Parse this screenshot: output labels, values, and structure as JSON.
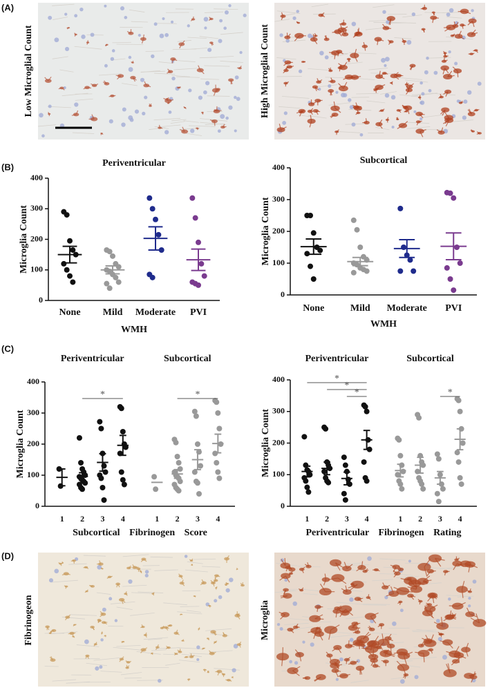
{
  "panel_a": {
    "label": "(A)",
    "images": [
      "Low Microglial Count",
      "High Microglial Count"
    ]
  },
  "panel_b": {
    "label": "(B)"
  },
  "panel_c": {
    "label": "(C)"
  },
  "panel_d": {
    "label": "(D)",
    "images": [
      "Fibrinogeon",
      "Microglia"
    ]
  },
  "chart_data": [
    {
      "type": "dotplot",
      "ylabel": "Microglia Count",
      "xlabel": "WMH",
      "ylim": [
        0,
        400
      ],
      "yticks": [
        0,
        100,
        200,
        300,
        400
      ],
      "groups": [
        {
          "title": "Periventricular",
          "categories": [
            "None",
            "Mild",
            "Moderate",
            "PVI"
          ],
          "colors": [
            "#111111",
            "#999999",
            "#1f2b8c",
            "#7a3b8f"
          ],
          "points": [
            [
              290,
              280,
              195,
              165,
              150,
              120,
              100,
              80,
              60
            ],
            [
              165,
              160,
              145,
              120,
              110,
              100,
              95,
              85,
              75,
              60,
              55,
              40
            ],
            [
              335,
              300,
              265,
              215,
              165,
              85,
              75
            ],
            [
              335,
              270,
              190,
              120,
              80,
              60,
              55,
              50
            ]
          ],
          "mean": [
            150,
            100,
            203,
            133
          ],
          "sem": [
            27,
            13,
            38,
            35
          ],
          "annotations": []
        }
      ]
    },
    {
      "type": "dotplot",
      "ylabel": "Microglia Count",
      "xlabel": "WMH",
      "ylim": [
        0,
        400
      ],
      "yticks": [
        0,
        100,
        200,
        300,
        400
      ],
      "groups": [
        {
          "title": "Subcortical",
          "categories": [
            "None",
            "Mild",
            "Moderate",
            "PVI"
          ],
          "colors": [
            "#111111",
            "#999999",
            "#1f2b8c",
            "#7a3b8f"
          ],
          "points": [
            [
              250,
              250,
              195,
              150,
              140,
              130,
              90,
              50
            ],
            [
              235,
              205,
              150,
              120,
              110,
              100,
              95,
              85,
              80,
              75,
              70
            ],
            [
              272,
              150,
              125,
              110,
              75,
              75
            ],
            [
              322,
              320,
              305,
              150,
              100,
              85,
              50,
              15
            ]
          ],
          "mean": [
            152,
            105,
            146,
            153
          ],
          "sem": [
            24,
            13,
            28,
            42
          ],
          "annotations": []
        }
      ]
    },
    {
      "type": "dotplot",
      "ylabel": "Microglia Count",
      "xlabel": "Subcortical Fibrinogen Score",
      "ylim": [
        0,
        400
      ],
      "yticks": [
        0,
        100,
        200,
        300,
        400
      ],
      "groups": [
        {
          "title": "Periventricular",
          "categories": [
            "1",
            "2",
            "3",
            "4"
          ],
          "colors": [
            "#111111",
            "#111111",
            "#111111",
            "#111111"
          ],
          "points": [
            [
              120,
              65
            ],
            [
              220,
              140,
              120,
              110,
              100,
              95,
              90,
              85,
              80,
              75,
              70,
              60,
              55
            ],
            [
              272,
              250,
              170,
              130,
              110,
              100,
              90,
              60,
              20
            ],
            [
              320,
              315,
              240,
              200,
              190,
              170,
              110,
              85,
              70
            ]
          ],
          "mean": [
            93,
            96,
            141,
            196
          ],
          "sem": [
            27,
            12,
            28,
            32
          ],
          "annotations": [
            {
              "from": "2",
              "to": "4",
              "label": "*"
            }
          ]
        },
        {
          "title": "Subcortical",
          "categories": [
            "1",
            "2",
            "3",
            "4"
          ],
          "colors": [
            "#999999",
            "#999999",
            "#999999",
            "#999999"
          ],
          "points": [
            [
              95,
              55
            ],
            [
              215,
              205,
              160,
              140,
              120,
              110,
              100,
              95,
              90,
              80,
              70,
              60,
              55,
              50
            ],
            [
              305,
              290,
              200,
              175,
              130,
              110,
              80,
              75,
              40
            ],
            [
              340,
              335,
              300,
              250,
              200,
              170,
              140,
              110,
              90
            ]
          ],
          "mean": [
            77,
            104,
            150,
            202
          ],
          "sem": [
            null,
            14,
            32,
            30
          ],
          "annotations": [
            {
              "from": "2",
              "to": "4",
              "label": "*"
            }
          ]
        }
      ]
    },
    {
      "type": "dotplot",
      "ylabel": "Microglia Count",
      "xlabel": "Periventricular Fibrinogen Rating",
      "ylim": [
        0,
        400
      ],
      "yticks": [
        0,
        100,
        200,
        300,
        400
      ],
      "groups": [
        {
          "title": "Periventricular",
          "categories": [
            "1",
            "2",
            "3",
            "4"
          ],
          "colors": [
            "#111111",
            "#111111",
            "#111111",
            "#111111"
          ],
          "points": [
            [
              220,
              130,
              115,
              110,
              100,
              90,
              80,
              60,
              45
            ],
            [
              250,
              245,
              140,
              130,
              120,
              110,
              90,
              80,
              75
            ],
            [
              155,
              130,
              110,
              85,
              70,
              40,
              20
            ],
            [
              320,
              315,
              300,
              210,
              180,
              140,
              90,
              80
            ]
          ],
          "mean": [
            110,
            120,
            88,
            210
          ],
          "sem": [
            17,
            20,
            20,
            30
          ],
          "annotations": [
            {
              "from": "1",
              "to": "4",
              "label": "*"
            },
            {
              "from": "2",
              "to": "4",
              "label": "*"
            },
            {
              "from": "3",
              "to": "4",
              "label": "*"
            }
          ]
        },
        {
          "title": "Subcortical",
          "categories": [
            "1",
            "2",
            "3",
            "4"
          ],
          "colors": [
            "#999999",
            "#999999",
            "#999999",
            "#999999"
          ],
          "points": [
            [
              215,
              210,
              160,
              130,
              110,
              100,
              80,
              70,
              55
            ],
            [
              290,
              280,
              160,
              140,
              130,
              110,
              90,
              80,
              70,
              55
            ],
            [
              165,
              150,
              100,
              70,
              55,
              40,
              15
            ],
            [
              340,
              335,
              300,
              245,
              200,
              170,
              140,
              90,
              70
            ]
          ],
          "mean": [
            113,
            130,
            90,
            212
          ],
          "sem": [
            20,
            25,
            20,
            33
          ],
          "annotations": [
            {
              "from": "3",
              "to": "4",
              "label": "*"
            }
          ]
        }
      ]
    }
  ]
}
